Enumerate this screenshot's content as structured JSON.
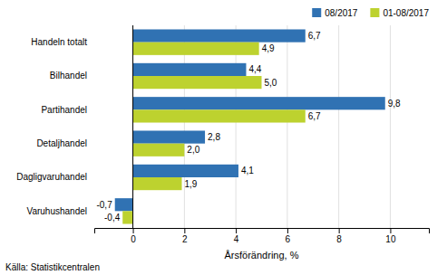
{
  "chart_data": {
    "type": "bar",
    "orientation": "horizontal",
    "categories": [
      "Varuhushandel",
      "Dagligvaruhandel",
      "Detaljhandel",
      "Partihandel",
      "Bilhandel",
      "Handeln totalt"
    ],
    "series": [
      {
        "name": "08/2017",
        "color": "#3072B3",
        "values": [
          -0.7,
          4.1,
          2.8,
          9.8,
          4.4,
          6.7
        ],
        "value_labels": [
          "-0,7",
          "4,1",
          "2,8",
          "9,8",
          "4,4",
          "6,7"
        ]
      },
      {
        "name": "01-08/2017",
        "color": "#BDD22F",
        "values": [
          -0.4,
          1.9,
          2.0,
          6.7,
          5.0,
          4.9
        ],
        "value_labels": [
          "-0,4",
          "1,9",
          "2,0",
          "6,7",
          "5,0",
          "4,9"
        ]
      }
    ],
    "xlabel": "Årsförändring, %",
    "xlim": [
      -1.5,
      11.5
    ],
    "xticks": [
      0,
      2,
      4,
      6,
      8,
      10
    ],
    "grid": true,
    "legend": "upper right",
    "data_labels": true,
    "annotations": [
      "Källa: Statistikcentralen"
    ]
  }
}
